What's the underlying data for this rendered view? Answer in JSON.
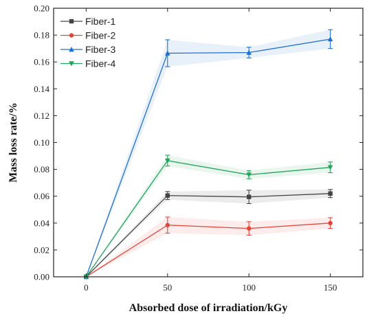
{
  "chart_data": {
    "type": "line",
    "xlabel": "Absorbed dose of irradiation/kGy",
    "ylabel": "Mass loss rate/%",
    "xlim": [
      -20,
      170
    ],
    "ylim": [
      0,
      0.2
    ],
    "x_ticks": [
      0,
      50,
      100,
      150
    ],
    "y_ticks": [
      0.0,
      0.02,
      0.04,
      0.06,
      0.08,
      0.1,
      0.12,
      0.14,
      0.16,
      0.18,
      0.2
    ],
    "x_tick_labels": [
      "0",
      "50",
      "100",
      "150"
    ],
    "y_tick_labels": [
      "0.00",
      "0.02",
      "0.04",
      "0.06",
      "0.08",
      "0.10",
      "0.12",
      "0.14",
      "0.16",
      "0.18",
      "0.20"
    ],
    "legend_position": "top-left",
    "grid": false,
    "x": [
      0,
      50,
      100,
      150
    ],
    "series": [
      {
        "name": "Fiber-1",
        "color": "#444444",
        "marker": "square",
        "values": [
          0.0,
          0.0605,
          0.0595,
          0.062
        ],
        "errors": [
          0.0,
          0.003,
          0.005,
          0.003
        ]
      },
      {
        "name": "Fiber-2",
        "color": "#e0453a",
        "marker": "circle",
        "values": [
          0.0,
          0.0385,
          0.036,
          0.04
        ],
        "errors": [
          0.0,
          0.006,
          0.005,
          0.004
        ]
      },
      {
        "name": "Fiber-3",
        "color": "#1f6fd0",
        "marker": "triangle-up",
        "values": [
          0.0,
          0.1665,
          0.167,
          0.177
        ],
        "errors": [
          0.0,
          0.01,
          0.004,
          0.007
        ]
      },
      {
        "name": "Fiber-4",
        "color": "#22a45a",
        "marker": "triangle-down",
        "values": [
          0.0,
          0.0865,
          0.076,
          0.0815
        ],
        "errors": [
          0.0,
          0.004,
          0.003,
          0.004
        ]
      }
    ]
  }
}
